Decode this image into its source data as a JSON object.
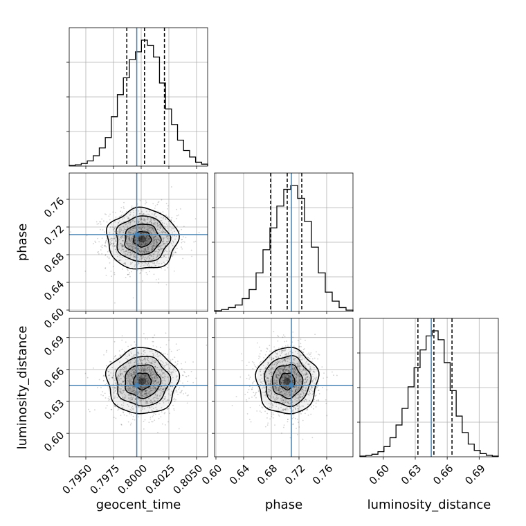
{
  "chart_data": {
    "type": "corner",
    "parameters": [
      {
        "name": "geocent_time",
        "range": [
          0.7935,
          0.806
        ],
        "ticks": [
          0.795,
          0.7975,
          0.8,
          0.8025,
          0.805
        ],
        "tick_labels": [
          "0.7950",
          "0.7975",
          "0.8000",
          "0.8025",
          "0.8050"
        ],
        "truth": 0.7996,
        "quantiles": [
          0.7987,
          0.8003,
          0.8021
        ],
        "hist_counts": [
          0.5,
          1,
          2,
          4,
          8,
          14,
          22,
          38,
          55,
          68,
          82,
          88,
          97,
          93,
          84,
          64,
          44,
          32,
          20,
          12,
          7,
          3,
          1.5
        ]
      },
      {
        "name": "phase",
        "range": [
          0.598,
          0.798
        ],
        "ticks": [
          0.6,
          0.64,
          0.68,
          0.72,
          0.76
        ],
        "tick_labels": [
          "0.60",
          "0.64",
          "0.68",
          "0.72",
          "0.76"
        ],
        "truth": 0.709,
        "quantiles": [
          0.679,
          0.703,
          0.724
        ],
        "hist_counts": [
          0.5,
          1.5,
          3,
          5,
          10,
          17,
          30,
          48,
          65,
          82,
          95,
          98,
          88,
          70,
          50,
          30,
          15,
          8,
          3,
          1
        ]
      },
      {
        "name": "luminosity_distance",
        "range": [
          0.578,
          0.708
        ],
        "ticks": [
          0.6,
          0.63,
          0.66,
          0.69
        ],
        "tick_labels": [
          "0.60",
          "0.63",
          "0.66",
          "0.69"
        ],
        "truth": 0.645,
        "quantiles": [
          0.6325,
          0.6475,
          0.6645
        ],
        "hist_counts": [
          0.5,
          1,
          2,
          4,
          8,
          15,
          25,
          38,
          55,
          70,
          84,
          95,
          99,
          92,
          74,
          52,
          32,
          19,
          10,
          5,
          2.5,
          1.2,
          0.5
        ]
      }
    ],
    "pair_panels": [
      {
        "x": "geocent_time",
        "y": "phase",
        "center": [
          0.8001,
          0.7025
        ],
        "sigma": [
          0.0016,
          0.022
        ]
      },
      {
        "x": "geocent_time",
        "y": "luminosity_distance",
        "center": [
          0.8001,
          0.649
        ],
        "sigma": [
          0.0016,
          0.0155
        ]
      },
      {
        "x": "phase",
        "y": "luminosity_distance",
        "center": [
          0.703,
          0.649
        ],
        "sigma": [
          0.022,
          0.0155
        ]
      }
    ],
    "contour_levels_sigma": [
      0.5,
      1.0,
      1.5,
      2.0
    ],
    "truth_color": "#4682b4",
    "grid": true,
    "legend": "none"
  }
}
